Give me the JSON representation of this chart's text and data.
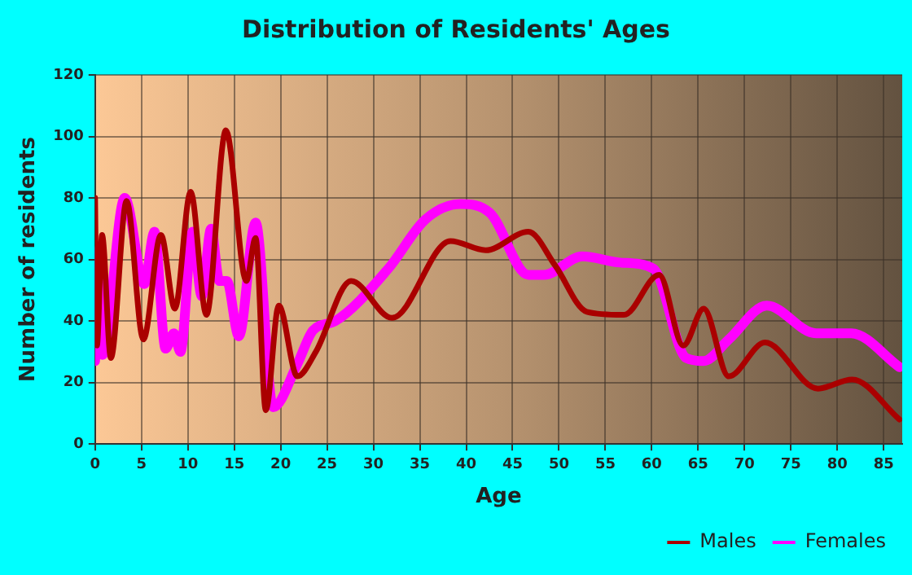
{
  "chart_data": {
    "type": "line",
    "title": "Distribution of Residents' Ages",
    "xlabel": "Age",
    "ylabel": "Number of residents",
    "xlim": [
      0,
      87
    ],
    "xticks": [
      0,
      5,
      10,
      15,
      20,
      25,
      30,
      35,
      40,
      45,
      50,
      55,
      60,
      65,
      70,
      75,
      80,
      85
    ],
    "ylim": [
      0,
      120
    ],
    "yticks": [
      0,
      20,
      40,
      60,
      80,
      100,
      120
    ],
    "grid": true,
    "legend": "bottom right",
    "marker": "none",
    "line_style": "solid",
    "series": [
      {
        "name": "Males",
        "color": "#aa0000",
        "x": [
          0,
          0.2,
          0.75,
          1.7,
          3.4,
          5.2,
          7.1,
          8.6,
          10.3,
          12,
          14.1,
          16.3,
          17.3,
          18.4,
          19.8,
          21.8,
          23.8,
          27.6,
          32,
          38.3,
          42.1,
          46.7,
          49.6,
          53,
          57,
          60.8,
          63.4,
          65.6,
          68.3,
          72.2,
          77.9,
          81.6,
          86.7
        ],
        "values": [
          80,
          32,
          68,
          28,
          79,
          34,
          68,
          44,
          82,
          42,
          102,
          53,
          67,
          11,
          45,
          22,
          30,
          53,
          41,
          66,
          63,
          69,
          58,
          43,
          42,
          55,
          32,
          44,
          22,
          33,
          18,
          21,
          8
        ]
      },
      {
        "name": "Females",
        "color": "#ff00ff",
        "x": [
          0,
          0.5,
          0.8,
          3.2,
          5.3,
          6.4,
          7.6,
          8.5,
          9.2,
          10.5,
          11.5,
          12.5,
          13.4,
          14.2,
          15.5,
          17.3,
          19.2,
          21.8,
          23.5,
          25.9,
          31.6,
          35.6,
          39.4,
          42.6,
          46.7,
          48.4,
          52.5,
          56.6,
          60.2,
          63.7,
          65.6,
          68.3,
          72.4,
          77.7,
          81.5,
          86.7
        ],
        "values": [
          27,
          64,
          29,
          80,
          52,
          69,
          31,
          36,
          30,
          69,
          48,
          70,
          53,
          53,
          35,
          72,
          12,
          26,
          37,
          40,
          57,
          73,
          78,
          75,
          55,
          55,
          61,
          59,
          57,
          28,
          27,
          34,
          45,
          36,
          36,
          25
        ]
      }
    ]
  }
}
